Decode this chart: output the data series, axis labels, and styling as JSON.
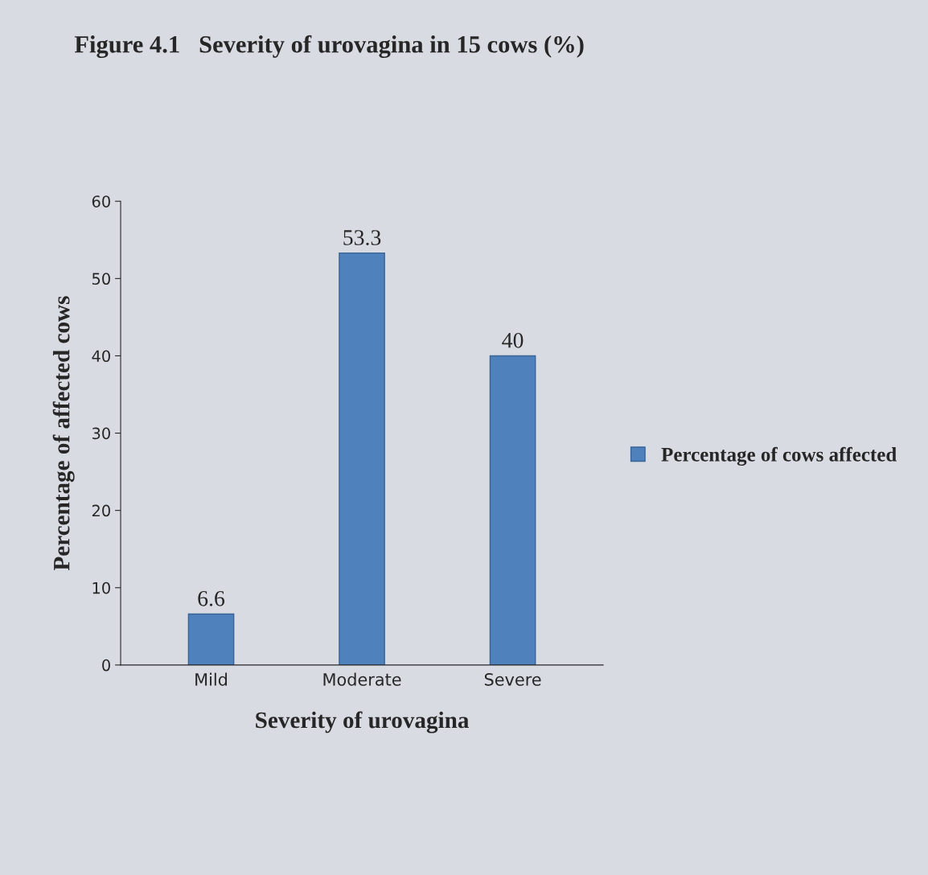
{
  "chart_data": {
    "type": "bar",
    "title": "Figure 4.1   Severity of urovagina in 15 cows (%)",
    "xlabel": "Severity of urovagina",
    "ylabel": "Percentage of affected cows",
    "categories": [
      "Mild",
      "Moderate",
      "Severe"
    ],
    "series": [
      {
        "name": "Percentage of cows affected",
        "color": "#4f81bd",
        "values": [
          6.6,
          53.3,
          40
        ]
      }
    ],
    "ylim": [
      0,
      60
    ],
    "yticks": [
      0,
      10,
      20,
      30,
      40,
      50,
      60
    ],
    "data_labels": true,
    "legend": "right",
    "grid": false
  }
}
